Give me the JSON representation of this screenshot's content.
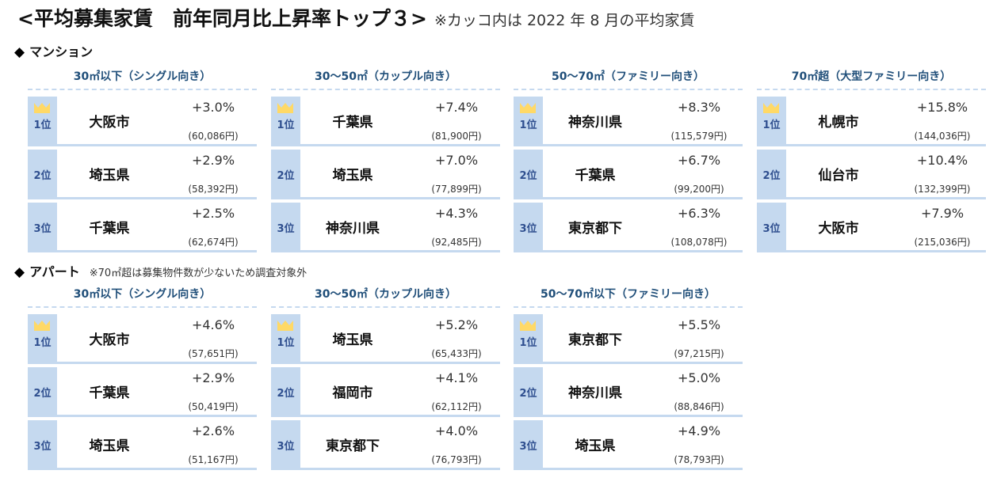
{
  "title": {
    "main": "<平均募集家賃　前年同月比上昇率トップ３>",
    "note": "※カッコ内は 2022 年 8 月の平均家賃"
  },
  "mansion": {
    "label": "マンション",
    "groups": [
      {
        "header": "30㎡以下（シングル向き）",
        "rows": [
          {
            "rank": "1位",
            "city": "大阪市",
            "pct": "+3.0%",
            "yen": "(60,086円)"
          },
          {
            "rank": "2位",
            "city": "埼玉県",
            "pct": "+2.9%",
            "yen": "(58,392円)"
          },
          {
            "rank": "3位",
            "city": "千葉県",
            "pct": "+2.5%",
            "yen": "(62,674円)"
          }
        ]
      },
      {
        "header": "30～50㎡（カップル向き）",
        "rows": [
          {
            "rank": "1位",
            "city": "千葉県",
            "pct": "+7.4%",
            "yen": "(81,900円)"
          },
          {
            "rank": "2位",
            "city": "埼玉県",
            "pct": "+7.0%",
            "yen": "(77,899円)"
          },
          {
            "rank": "3位",
            "city": "神奈川県",
            "pct": "+4.3%",
            "yen": "(92,485円)"
          }
        ]
      },
      {
        "header": "50～70㎡（ファミリー向き）",
        "rows": [
          {
            "rank": "1位",
            "city": "神奈川県",
            "pct": "+8.3%",
            "yen": "(115,579円)"
          },
          {
            "rank": "2位",
            "city": "千葉県",
            "pct": "+6.7%",
            "yen": "(99,200円)"
          },
          {
            "rank": "3位",
            "city": "東京都下",
            "pct": "+6.3%",
            "yen": "(108,078円)"
          }
        ]
      },
      {
        "header": "70㎡超（大型ファミリー向き）",
        "rows": [
          {
            "rank": "1位",
            "city": "札幌市",
            "pct": "+15.8%",
            "yen": "(144,036円)"
          },
          {
            "rank": "2位",
            "city": "仙台市",
            "pct": "+10.4%",
            "yen": "(132,399円)"
          },
          {
            "rank": "3位",
            "city": "大阪市",
            "pct": "+7.9%",
            "yen": "(215,036円)"
          }
        ]
      }
    ]
  },
  "apart": {
    "label": "アパート",
    "note": "※70㎡超は募集物件数が少ないため調査対象外",
    "groups": [
      {
        "header": "30㎡以下（シングル向き）",
        "rows": [
          {
            "rank": "1位",
            "city": "大阪市",
            "pct": "+4.6%",
            "yen": "(57,651円)"
          },
          {
            "rank": "2位",
            "city": "千葉県",
            "pct": "+2.9%",
            "yen": "(50,419円)"
          },
          {
            "rank": "3位",
            "city": "埼玉県",
            "pct": "+2.6%",
            "yen": "(51,167円)"
          }
        ]
      },
      {
        "header": "30～50㎡（カップル向き）",
        "rows": [
          {
            "rank": "1位",
            "city": "埼玉県",
            "pct": "+5.2%",
            "yen": "(65,433円)"
          },
          {
            "rank": "2位",
            "city": "福岡市",
            "pct": "+4.1%",
            "yen": "(62,112円)"
          },
          {
            "rank": "3位",
            "city": "東京都下",
            "pct": "+4.0%",
            "yen": "(76,793円)"
          }
        ]
      },
      {
        "header": "50～70㎡以下（ファミリー向き）",
        "rows": [
          {
            "rank": "1位",
            "city": "東京都下",
            "pct": "+5.5%",
            "yen": "(97,215円)"
          },
          {
            "rank": "2位",
            "city": "神奈川県",
            "pct": "+5.0%",
            "yen": "(88,846円)"
          },
          {
            "rank": "3位",
            "city": "埼玉県",
            "pct": "+4.9%",
            "yen": "(78,793円)"
          }
        ]
      }
    ]
  },
  "icons": {
    "section_marker": "◆",
    "first_place": "crown-icon"
  },
  "colors": {
    "rank_bg": "#c5d9ef",
    "header_text": "#1f4e79",
    "rank_text": "#2f4f8f",
    "crown": "#ffd966"
  }
}
